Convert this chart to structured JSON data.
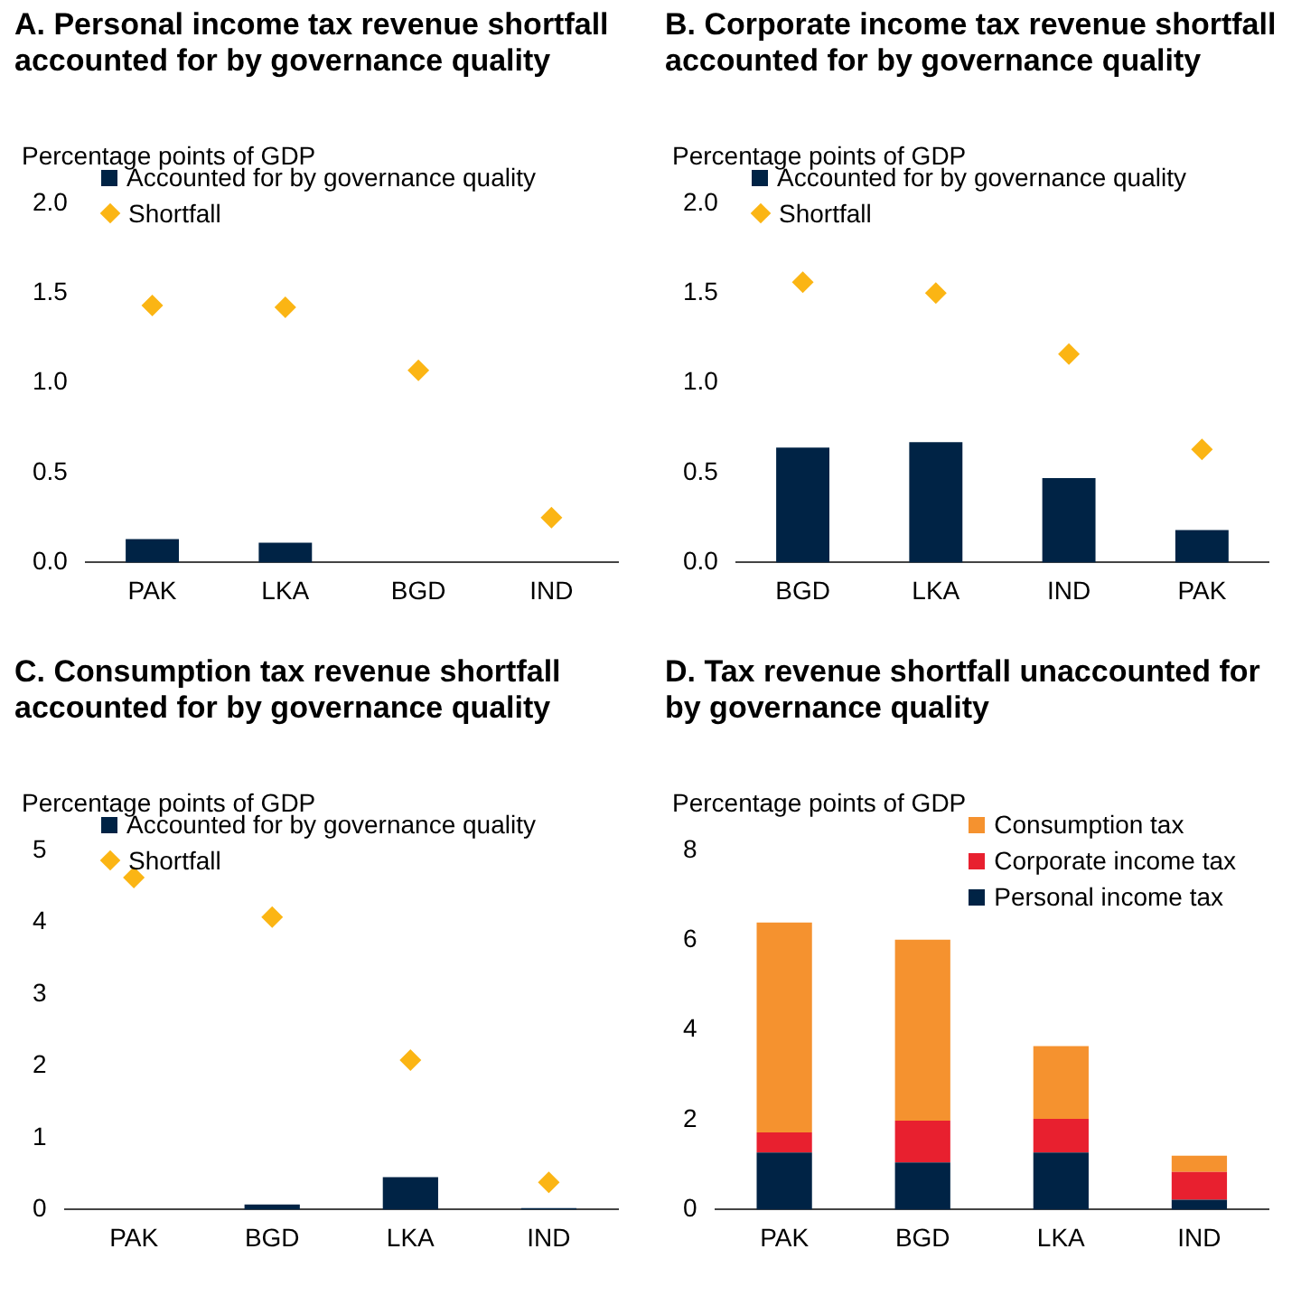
{
  "chart_data": [
    {
      "type": "bar",
      "title": "A. Personal income tax revenue shortfall accounted for by governance quality",
      "ylabel": "Percentage points of GDP",
      "categories": [
        "PAK",
        "LKA",
        "BGD",
        "IND"
      ],
      "series": [
        {
          "name": "Accounted for by governance quality",
          "color": "#002345",
          "values": [
            0.13,
            0.11,
            0,
            0
          ]
        },
        {
          "name": "Shortfall",
          "type": "scatter",
          "color": "#fbb514",
          "values": [
            1.43,
            1.42,
            1.07,
            0.25
          ]
        }
      ],
      "ylim": [
        0,
        2
      ],
      "yticks": [
        {
          "value": 0,
          "label": "0.0"
        },
        {
          "value": 0.5,
          "label": "0.5"
        },
        {
          "value": 1,
          "label": "1.0"
        },
        {
          "value": 1.5,
          "label": "1.5"
        },
        {
          "value": 2,
          "label": "2.0"
        }
      ],
      "legend": "top",
      "marker": "diamond"
    },
    {
      "type": "bar",
      "title": "B. Corporate income tax revenue shortfall accounted for by governance quality",
      "ylabel": "Percentage points of GDP",
      "categories": [
        "BGD",
        "LKA",
        "IND",
        "PAK"
      ],
      "series": [
        {
          "name": "Accounted for by governance quality",
          "color": "#002345",
          "values": [
            0.64,
            0.67,
            0.47,
            0.18
          ]
        },
        {
          "name": "Shortfall",
          "type": "scatter",
          "color": "#fbb514",
          "values": [
            1.56,
            1.5,
            1.16,
            0.63
          ]
        }
      ],
      "ylim": [
        0,
        2
      ],
      "yticks": [
        {
          "value": 0,
          "label": "0.0"
        },
        {
          "value": 0.5,
          "label": "0.5"
        },
        {
          "value": 1,
          "label": "1.0"
        },
        {
          "value": 1.5,
          "label": "1.5"
        },
        {
          "value": 2,
          "label": "2.0"
        }
      ],
      "legend": "top",
      "marker": "diamond"
    },
    {
      "type": "bar",
      "title": "C. Consumption tax revenue shortfall accounted for by governance quality",
      "ylabel": "Percentage points of GDP",
      "categories": [
        "PAK",
        "BGD",
        "LKA",
        "IND"
      ],
      "series": [
        {
          "name": "Accounted for by governance quality",
          "color": "#002345",
          "values": [
            0,
            0.07,
            0.45,
            0.02
          ]
        },
        {
          "name": "Shortfall",
          "type": "scatter",
          "color": "#fbb514",
          "values": [
            4.62,
            4.07,
            2.08,
            0.38
          ]
        }
      ],
      "ylim": [
        0,
        5
      ],
      "yticks": [
        0,
        1,
        2,
        3,
        4,
        5
      ],
      "legend": "top",
      "marker": "diamond"
    },
    {
      "type": "bar",
      "title": "D. Tax revenue shortfall unaccounted for by governance quality",
      "ylabel": "Percentage points of GDP",
      "categories": [
        "PAK",
        "BGD",
        "LKA",
        "IND"
      ],
      "stacked": true,
      "series": [
        {
          "name": "Personal income tax",
          "color": "#002345",
          "values": [
            1.27,
            1.05,
            1.27,
            0.22
          ]
        },
        {
          "name": "Corporate income tax",
          "color": "#e8202f",
          "values": [
            0.45,
            0.93,
            0.75,
            0.62
          ]
        },
        {
          "name": "Consumption tax",
          "color": "#f5922f",
          "values": [
            4.67,
            4.03,
            1.62,
            0.36
          ]
        }
      ],
      "ylim": [
        0,
        8
      ],
      "yticks": [
        0,
        2,
        4,
        6,
        8
      ],
      "legend": "top right"
    }
  ]
}
